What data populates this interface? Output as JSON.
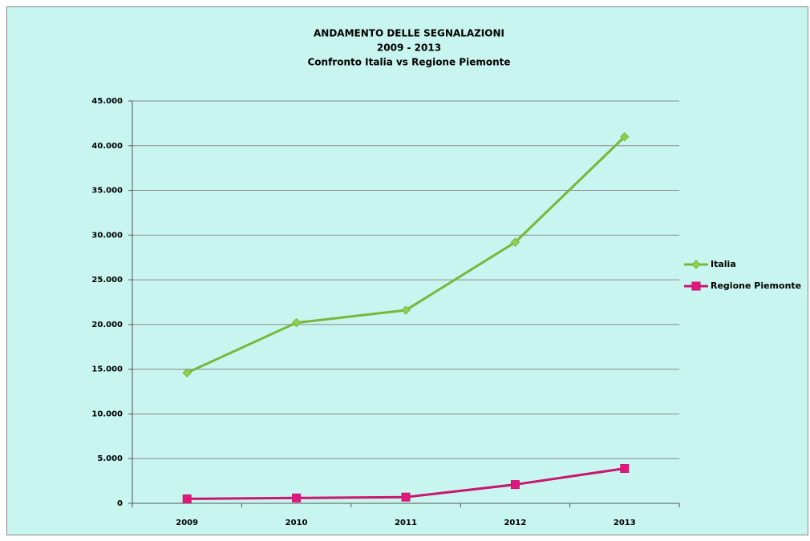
{
  "chart_data": {
    "type": "line",
    "title": "ANDAMENTO DELLE SEGNALAZIONI",
    "subtitle": "2009 - 2013",
    "subtitle2": "Confronto Italia vs Regione Piemonte",
    "categories": [
      "2009",
      "2010",
      "2011",
      "2012",
      "2013"
    ],
    "series": [
      {
        "name": "Italia",
        "color": "#76b83a",
        "marker": "diamond",
        "marker_color": "#8fd14f",
        "values": [
          14600,
          20200,
          21600,
          29200,
          41000
        ]
      },
      {
        "name": "Regione Piemonte",
        "color": "#c8176e",
        "marker": "square",
        "marker_color": "#e0187e",
        "values": [
          500,
          600,
          700,
          2100,
          3900
        ]
      }
    ],
    "ylim": [
      0,
      45000
    ],
    "yticks": [
      0,
      {
        "value": 5000,
        "label": "5.000"
      },
      {
        "value": 10000,
        "label": "10.000"
      },
      {
        "value": 15000,
        "label": "15.000"
      },
      {
        "value": 20000,
        "label": "20.000"
      },
      {
        "value": 25000,
        "label": "25.000"
      },
      {
        "value": 30000,
        "label": "30.000"
      },
      {
        "value": 35000,
        "label": "35.000"
      },
      {
        "value": 40000,
        "label": "40.000"
      },
      {
        "value": 45000,
        "label": "45.000"
      }
    ],
    "grid": true,
    "legend": "right"
  }
}
